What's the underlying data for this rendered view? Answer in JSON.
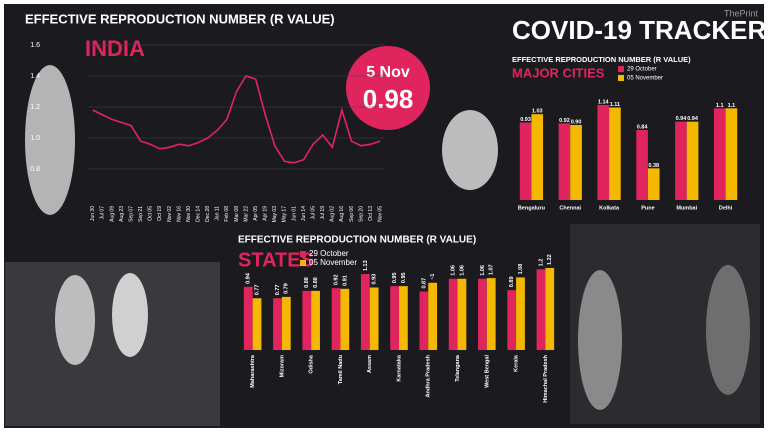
{
  "header": {
    "title": "COVID-19 TRACKER",
    "watermark": "ThePrint",
    "badge_date": "5 Nov",
    "badge_value": 0.98
  },
  "chart_data": [
    {
      "type": "line",
      "title": "EFFECTIVE REPRODUCTION NUMBER (R VALUE)",
      "subtitle": "INDIA",
      "categories": [
        "Jun 30",
        "Jul 07",
        "Aug 09",
        "Aug 23",
        "Sep 07",
        "Sep 21",
        "Oct 05",
        "Oct 19",
        "Nov 02",
        "Nov 16",
        "Nov 30",
        "Dec 14",
        "Dec 28",
        "Jan 11",
        "Feb 08",
        "Mar 08",
        "Mar 22",
        "Apr 05",
        "Apr 19",
        "May 03",
        "May 17",
        "Jun 01",
        "Jun 14",
        "Jul 05",
        "Jul 19",
        "Aug 02",
        "Aug 16",
        "Sep 06",
        "Sep 20",
        "Oct 13",
        "Nov 05"
      ],
      "values": [
        1.18,
        1.15,
        1.12,
        1.1,
        1.08,
        0.98,
        0.96,
        0.93,
        0.94,
        0.96,
        0.95,
        0.97,
        1.0,
        1.05,
        1.12,
        1.3,
        1.4,
        1.38,
        1.15,
        0.95,
        0.85,
        0.84,
        0.86,
        0.96,
        1.02,
        0.94,
        1.18,
        0.98,
        0.95,
        0.96,
        0.98
      ],
      "color": "#e0245e",
      "ylim": [
        0.6,
        1.6
      ],
      "yticks": [
        0.8,
        {
          "value": 1,
          "label": "1.0"
        },
        1.2,
        1.4,
        1.6
      ],
      "grid": true
    },
    {
      "type": "bar",
      "title": "EFFECTIVE REPRODUCTION NUMBER (R VALUE)",
      "subtitle": "MAJOR CITIES",
      "categories": [
        "Bengaluru",
        "Chennai",
        "Kolkata",
        "Pune",
        "Mumbai",
        "Delhi"
      ],
      "series": [
        {
          "name": "29 October",
          "color": "#e0245e",
          "values": [
            0.93,
            0.92,
            1.14,
            0.84,
            0.94,
            1.1
          ],
          "value_labels": [
            "0.93",
            "0.92",
            "1.14",
            "0.84",
            "0.94",
            "1.1"
          ]
        },
        {
          "name": "05 November",
          "color": "#f5b800",
          "values": [
            1.03,
            0.9,
            1.11,
            0.38,
            0.94,
            1.1
          ],
          "value_labels": [
            "1.03",
            "0.90",
            "1.11",
            "0.38",
            "0.94",
            "1.1"
          ]
        }
      ]
    },
    {
      "type": "bar",
      "title": "EFFECTIVE REPRODUCTION NUMBER (R VALUE)",
      "subtitle": "STATES",
      "categories": [
        "Maharashtra",
        "Mizoram",
        "Odisha",
        "Tamil Nadu",
        "Assam",
        "Karnataka",
        "Andhra Pradesh",
        "Telangana",
        "West Bengal",
        "Kerala",
        "Himachal Pradesh"
      ],
      "series": [
        {
          "name": "29 October",
          "color": "#e0245e",
          "values": [
            0.94,
            0.77,
            0.88,
            0.92,
            1.13,
            0.95,
            0.87,
            1.06,
            1.06,
            0.89,
            1.2
          ],
          "value_labels": [
            "0.94",
            "0.77",
            "0.88",
            "0.92",
            "1.13",
            "0.95",
            "0.87",
            "1.06",
            "1.06",
            "0.89",
            "1.2"
          ]
        },
        {
          "name": "05 November",
          "color": "#f5b800",
          "values": [
            0.77,
            0.79,
            0.88,
            0.91,
            0.93,
            0.95,
            1,
            1.06,
            1.07,
            1.08,
            1.22
          ],
          "value_labels": [
            "0.77",
            "0.79",
            "0.88",
            "0.91",
            "0.93",
            "0.95",
            "~1",
            "1.06",
            "1.07",
            "1.08",
            "1.22"
          ]
        }
      ]
    }
  ]
}
